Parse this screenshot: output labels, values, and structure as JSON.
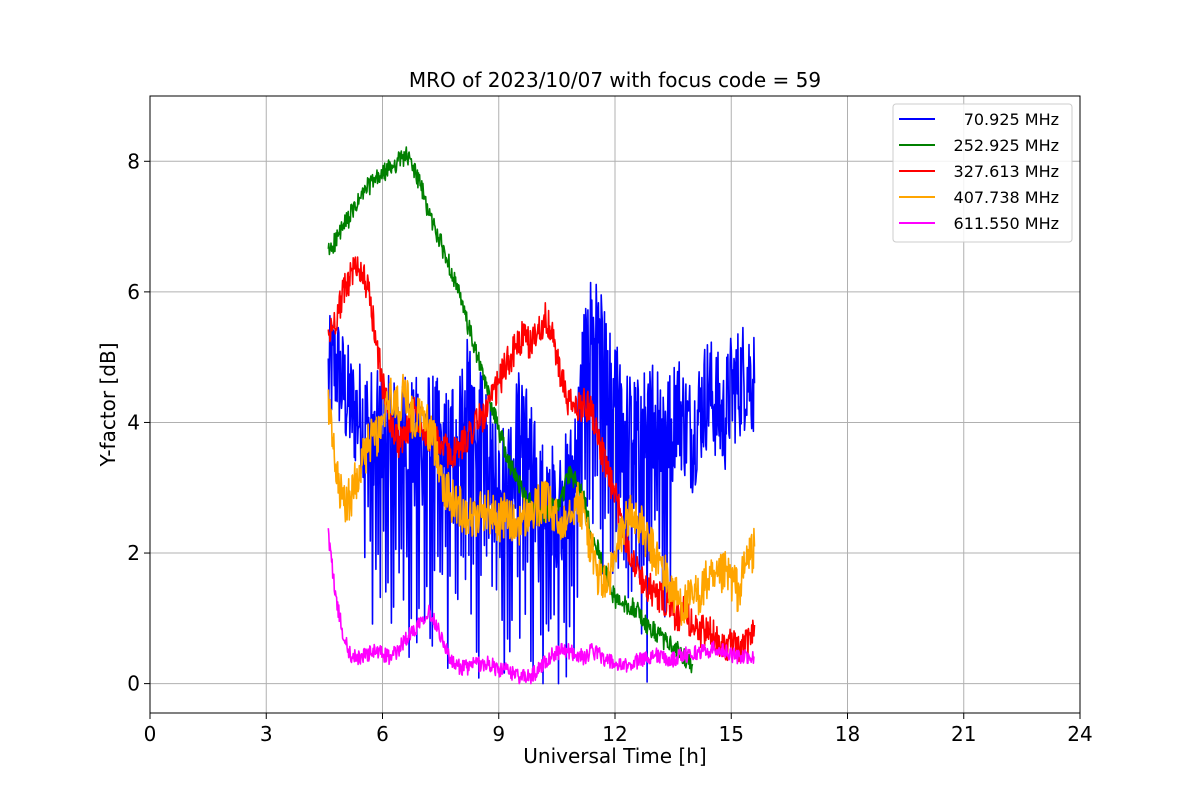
{
  "chart_data": {
    "type": "line",
    "title": "MRO of 2023/10/07 with focus code = 59",
    "xlabel": "Universal Time [h]",
    "ylabel": "Y-factor [dB]",
    "xlim": [
      0,
      24
    ],
    "ylim": [
      -0.45,
      9.0
    ],
    "xticks": [
      0,
      3,
      6,
      9,
      12,
      15,
      18,
      21,
      24
    ],
    "yticks": [
      0,
      2,
      4,
      6,
      8
    ],
    "grid": true,
    "legend_position": "top-right",
    "series": [
      {
        "name": "70.925 MHz",
        "color": "#0000ff",
        "x": [
          4.6,
          4.8,
          5.0,
          5.2,
          5.4,
          5.6,
          5.8,
          6.0,
          6.2,
          6.4,
          6.6,
          6.8,
          7.0,
          7.2,
          7.4,
          7.6,
          7.8,
          8.0,
          8.2,
          8.4,
          8.6,
          8.8,
          9.0,
          9.2,
          9.4,
          9.6,
          9.8,
          10.0,
          10.2,
          10.4,
          10.6,
          10.8,
          11.0,
          11.2,
          11.4,
          11.6,
          11.8,
          12.0,
          12.2,
          12.4,
          12.6,
          12.8,
          13.0,
          13.2,
          13.4,
          13.6,
          13.8,
          14.0,
          14.2,
          14.4,
          14.6,
          14.8,
          15.0,
          15.2,
          15.4,
          15.6
        ],
        "values": [
          4.7,
          4.9,
          4.5,
          4.2,
          4.1,
          4.0,
          3.9,
          3.9,
          3.8,
          3.9,
          4.0,
          3.8,
          3.9,
          3.9,
          3.8,
          3.7,
          3.9,
          4.2,
          4.4,
          4.1,
          3.8,
          3.5,
          3.4,
          3.2,
          3.6,
          4.3,
          3.5,
          3.0,
          2.9,
          2.8,
          2.9,
          3.0,
          3.5,
          5.0,
          5.5,
          5.2,
          4.6,
          4.4,
          4.0,
          3.9,
          3.8,
          4.0,
          4.2,
          4.1,
          3.9,
          4.3,
          4.0,
          3.8,
          4.2,
          4.5,
          4.3,
          4.0,
          4.5,
          4.6,
          4.8,
          4.6
        ]
      },
      {
        "name": "252.925 MHz",
        "color": "#008000",
        "x": [
          4.6,
          4.8,
          5.0,
          5.2,
          5.4,
          5.6,
          5.8,
          6.0,
          6.2,
          6.4,
          6.6,
          6.8,
          7.0,
          7.2,
          7.4,
          7.6,
          7.8,
          8.0,
          8.2,
          8.4,
          8.6,
          8.8,
          9.0,
          9.2,
          9.4,
          9.6,
          9.8,
          10.0,
          10.2,
          10.4,
          10.6,
          10.8,
          11.0,
          11.2,
          11.4,
          11.6,
          11.8,
          12.0,
          12.2,
          12.4,
          12.6,
          12.8,
          13.0,
          13.2,
          13.4,
          13.6,
          13.8,
          14.0
        ],
        "values": [
          6.6,
          6.8,
          7.0,
          7.2,
          7.4,
          7.6,
          7.7,
          7.8,
          7.9,
          8.0,
          8.1,
          7.9,
          7.6,
          7.2,
          6.9,
          6.6,
          6.3,
          5.9,
          5.5,
          5.1,
          4.7,
          4.3,
          3.9,
          3.5,
          3.2,
          3.0,
          2.8,
          2.6,
          2.6,
          2.7,
          2.8,
          3.2,
          3.1,
          2.8,
          2.3,
          2.0,
          1.6,
          1.3,
          1.2,
          1.2,
          1.1,
          0.9,
          0.8,
          0.7,
          0.6,
          0.5,
          0.4,
          0.3
        ]
      },
      {
        "name": "327.613 MHz",
        "color": "#ff0000",
        "x": [
          4.6,
          4.8,
          5.0,
          5.2,
          5.4,
          5.6,
          5.8,
          6.0,
          6.2,
          6.4,
          6.6,
          6.8,
          7.0,
          7.2,
          7.4,
          7.6,
          7.8,
          8.0,
          8.2,
          8.4,
          8.6,
          8.8,
          9.0,
          9.2,
          9.4,
          9.6,
          9.8,
          10.0,
          10.2,
          10.4,
          10.6,
          10.8,
          11.0,
          11.2,
          11.4,
          11.6,
          11.8,
          12.0,
          12.2,
          12.4,
          12.6,
          12.8,
          13.0,
          13.2,
          13.4,
          13.6,
          13.8,
          14.0,
          14.2,
          14.4,
          14.6,
          14.8,
          15.0,
          15.2,
          15.4,
          15.6
        ],
        "values": [
          5.3,
          5.6,
          6.0,
          6.3,
          6.4,
          6.1,
          5.4,
          4.6,
          4.0,
          3.7,
          3.8,
          4.2,
          4.0,
          3.8,
          3.7,
          3.6,
          3.5,
          3.6,
          3.8,
          4.0,
          4.1,
          4.3,
          4.6,
          4.9,
          5.1,
          5.3,
          5.2,
          5.4,
          5.6,
          5.3,
          4.7,
          4.3,
          4.2,
          4.3,
          4.2,
          3.7,
          3.2,
          2.9,
          2.4,
          2.0,
          1.7,
          1.5,
          1.4,
          1.3,
          1.2,
          1.0,
          1.1,
          0.9,
          0.8,
          0.8,
          0.7,
          0.6,
          0.6,
          0.5,
          0.6,
          0.9
        ]
      },
      {
        "name": "407.738 MHz",
        "color": "#ffa500",
        "x": [
          4.6,
          4.8,
          5.0,
          5.2,
          5.4,
          5.6,
          5.8,
          6.0,
          6.2,
          6.4,
          6.6,
          6.8,
          7.0,
          7.2,
          7.4,
          7.6,
          7.8,
          8.0,
          8.2,
          8.4,
          8.6,
          8.8,
          9.0,
          9.2,
          9.4,
          9.6,
          9.8,
          10.0,
          10.2,
          10.4,
          10.6,
          10.8,
          11.0,
          11.2,
          11.4,
          11.6,
          11.8,
          12.0,
          12.2,
          12.4,
          12.6,
          12.8,
          13.0,
          13.2,
          13.4,
          13.6,
          13.8,
          14.0,
          14.2,
          14.4,
          14.6,
          14.8,
          15.0,
          15.2,
          15.4,
          15.6
        ],
        "values": [
          4.3,
          3.2,
          2.7,
          2.9,
          3.3,
          3.6,
          3.8,
          3.9,
          4.4,
          4.2,
          4.5,
          4.0,
          4.1,
          3.9,
          3.6,
          3.0,
          2.8,
          2.7,
          2.6,
          2.5,
          2.7,
          2.6,
          2.5,
          2.6,
          2.4,
          2.5,
          2.6,
          2.7,
          2.8,
          2.6,
          2.4,
          2.7,
          2.8,
          2.6,
          2.0,
          1.6,
          1.5,
          1.9,
          2.4,
          2.6,
          2.5,
          2.2,
          2.0,
          1.8,
          1.5,
          1.3,
          1.2,
          1.3,
          1.4,
          1.6,
          1.5,
          1.7,
          1.6,
          1.4,
          1.9,
          2.1
        ]
      },
      {
        "name": "611.550 MHz",
        "color": "#ff00ff",
        "x": [
          4.6,
          4.8,
          5.0,
          5.2,
          5.4,
          5.6,
          5.8,
          6.0,
          6.2,
          6.4,
          6.6,
          6.8,
          7.0,
          7.2,
          7.4,
          7.6,
          7.8,
          8.0,
          8.2,
          8.4,
          8.6,
          8.8,
          9.0,
          9.2,
          9.4,
          9.6,
          9.8,
          10.0,
          10.2,
          10.4,
          10.6,
          10.8,
          11.0,
          11.2,
          11.4,
          11.6,
          11.8,
          12.0,
          12.2,
          12.4,
          12.6,
          12.8,
          13.0,
          13.2,
          13.4,
          13.6,
          13.8,
          14.0,
          14.2,
          14.4,
          14.6,
          14.8,
          15.0,
          15.2,
          15.4,
          15.6
        ],
        "values": [
          2.3,
          1.3,
          0.7,
          0.4,
          0.4,
          0.45,
          0.5,
          0.45,
          0.4,
          0.5,
          0.7,
          0.8,
          1.0,
          1.1,
          0.9,
          0.6,
          0.3,
          0.25,
          0.25,
          0.3,
          0.3,
          0.3,
          0.2,
          0.2,
          0.15,
          0.1,
          0.1,
          0.2,
          0.35,
          0.45,
          0.5,
          0.5,
          0.45,
          0.4,
          0.5,
          0.45,
          0.35,
          0.3,
          0.25,
          0.3,
          0.35,
          0.4,
          0.45,
          0.4,
          0.35,
          0.4,
          0.45,
          0.45,
          0.5,
          0.5,
          0.55,
          0.5,
          0.45,
          0.4,
          0.4,
          0.4
        ]
      }
    ]
  }
}
